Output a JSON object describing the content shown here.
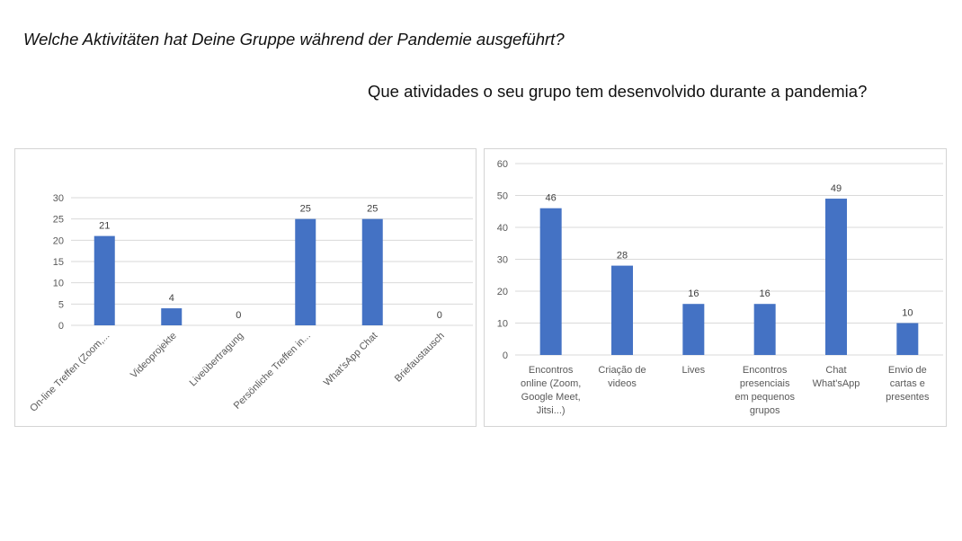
{
  "titles": {
    "de": "Welche Aktivitäten hat Deine Gruppe während der Pandemie ausgeführt?",
    "pt": "Que atividades o seu grupo tem desenvolvido durante a pandemia?"
  },
  "colors": {
    "bar": "#4472C4",
    "grid": "#d9d9d9",
    "text": "#595959"
  },
  "chart_data": [
    {
      "type": "bar",
      "title": "",
      "xlabel": "",
      "ylabel": "",
      "categories": [
        "On-line Treffen (Zoom,...",
        "Videoprojekte",
        "Liveübertragung",
        "Persönliche Treffen in...",
        "What'sApp Chat",
        "Briefaustausch"
      ],
      "values": [
        21,
        4,
        0,
        25,
        25,
        0
      ],
      "ylim": [
        0,
        30
      ],
      "yticks": [
        0,
        5,
        10,
        15,
        20,
        25,
        30
      ],
      "grid": true,
      "legend": "none",
      "data_labels": true,
      "category_label_rotation": -45
    },
    {
      "type": "bar",
      "title": "",
      "xlabel": "",
      "ylabel": "",
      "categories": [
        [
          "Encontros",
          "online (Zoom,",
          "Google Meet,",
          "Jitsi...)"
        ],
        [
          "Criação de",
          "videos"
        ],
        [
          "Lives"
        ],
        [
          "Encontros",
          "presenciais",
          "em pequenos",
          "grupos"
        ],
        [
          "Chat",
          "What'sApp"
        ],
        [
          "Envio de",
          "cartas e",
          "presentes"
        ]
      ],
      "values": [
        46,
        28,
        16,
        16,
        49,
        10
      ],
      "ylim": [
        0,
        60
      ],
      "yticks": [
        0,
        10,
        20,
        30,
        40,
        50,
        60
      ],
      "grid": true,
      "legend": "none",
      "data_labels": true,
      "category_label_rotation": 0
    }
  ]
}
